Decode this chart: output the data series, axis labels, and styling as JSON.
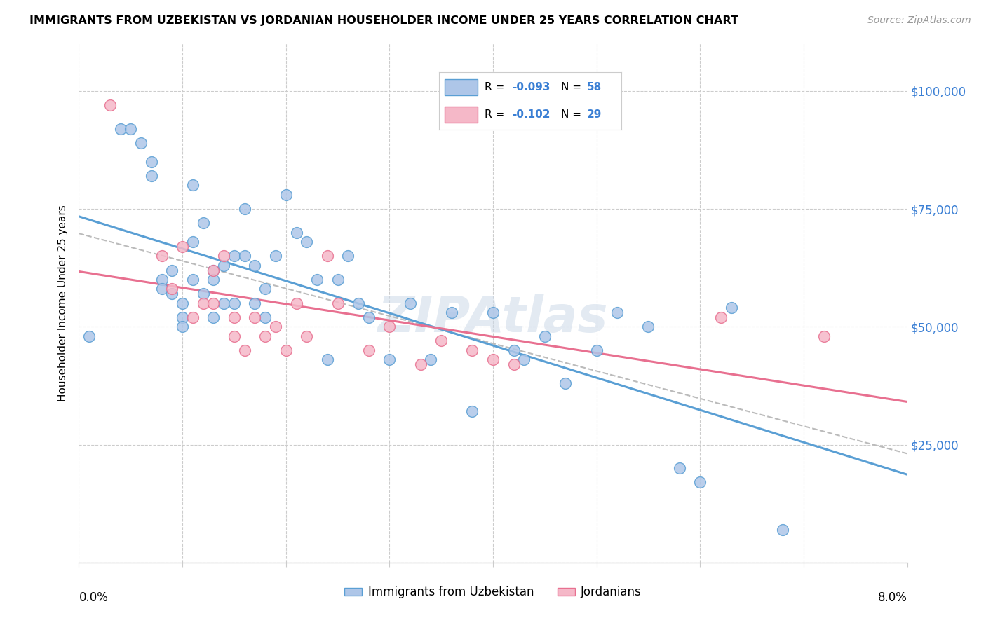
{
  "title": "IMMIGRANTS FROM UZBEKISTAN VS JORDANIAN HOUSEHOLDER INCOME UNDER 25 YEARS CORRELATION CHART",
  "source": "Source: ZipAtlas.com",
  "ylabel": "Householder Income Under 25 years",
  "x_min": 0.0,
  "x_max": 0.08,
  "y_min": 0,
  "y_max": 110000,
  "y_ticks": [
    0,
    25000,
    50000,
    75000,
    100000
  ],
  "y_tick_labels": [
    "",
    "$25,000",
    "$50,000",
    "$75,000",
    "$100,000"
  ],
  "legend_label1": "Immigrants from Uzbekistan",
  "legend_label2": "Jordanians",
  "color_blue": "#aec6e8",
  "color_pink": "#f5b8c8",
  "line_color_blue": "#5a9fd4",
  "line_color_pink": "#e87090",
  "trend_dashed_color": "#bbbbbb",
  "uzbek_x": [
    0.001,
    0.004,
    0.005,
    0.006,
    0.007,
    0.007,
    0.008,
    0.008,
    0.009,
    0.009,
    0.01,
    0.01,
    0.01,
    0.011,
    0.011,
    0.011,
    0.012,
    0.012,
    0.013,
    0.013,
    0.013,
    0.014,
    0.014,
    0.015,
    0.015,
    0.016,
    0.016,
    0.017,
    0.017,
    0.018,
    0.018,
    0.019,
    0.02,
    0.021,
    0.022,
    0.023,
    0.024,
    0.025,
    0.026,
    0.027,
    0.028,
    0.03,
    0.032,
    0.034,
    0.036,
    0.038,
    0.04,
    0.042,
    0.043,
    0.045,
    0.047,
    0.05,
    0.052,
    0.055,
    0.058,
    0.06,
    0.063,
    0.068
  ],
  "uzbek_y": [
    48000,
    92000,
    92000,
    89000,
    85000,
    82000,
    60000,
    58000,
    62000,
    57000,
    55000,
    52000,
    50000,
    80000,
    68000,
    60000,
    72000,
    57000,
    62000,
    60000,
    52000,
    55000,
    63000,
    65000,
    55000,
    75000,
    65000,
    63000,
    55000,
    58000,
    52000,
    65000,
    78000,
    70000,
    68000,
    60000,
    43000,
    60000,
    65000,
    55000,
    52000,
    43000,
    55000,
    43000,
    53000,
    32000,
    53000,
    45000,
    43000,
    48000,
    38000,
    45000,
    53000,
    50000,
    20000,
    17000,
    54000,
    7000
  ],
  "jordan_x": [
    0.003,
    0.008,
    0.009,
    0.01,
    0.011,
    0.012,
    0.013,
    0.013,
    0.014,
    0.015,
    0.015,
    0.016,
    0.017,
    0.018,
    0.019,
    0.02,
    0.021,
    0.022,
    0.024,
    0.025,
    0.028,
    0.03,
    0.033,
    0.035,
    0.038,
    0.04,
    0.042,
    0.062,
    0.072
  ],
  "jordan_y": [
    97000,
    65000,
    58000,
    67000,
    52000,
    55000,
    55000,
    62000,
    65000,
    52000,
    48000,
    45000,
    52000,
    48000,
    50000,
    45000,
    55000,
    48000,
    65000,
    55000,
    45000,
    50000,
    42000,
    47000,
    45000,
    43000,
    42000,
    52000,
    48000
  ]
}
